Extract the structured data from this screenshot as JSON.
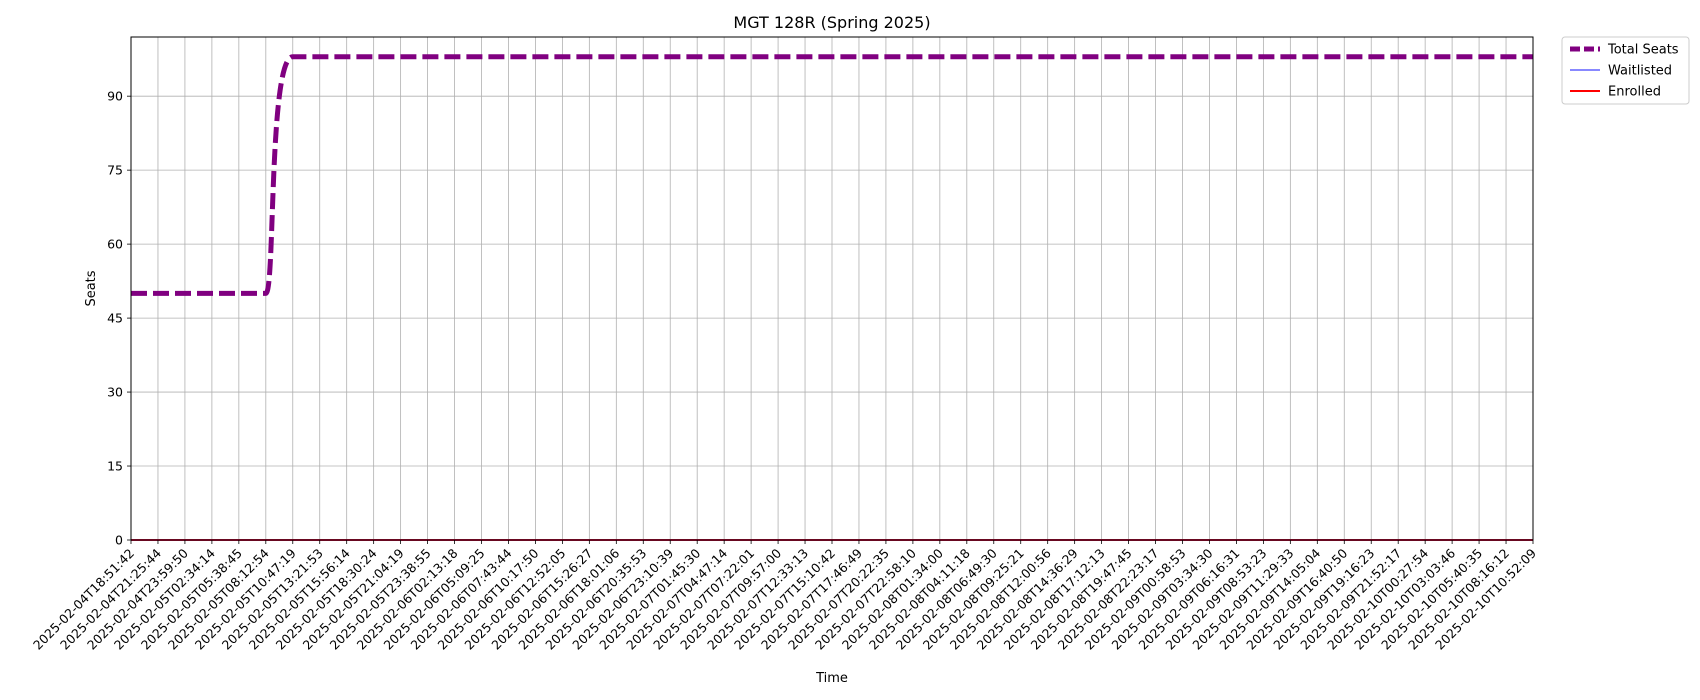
{
  "chart_data": {
    "type": "line",
    "title": "MGT 128R (Spring 2025)",
    "xlabel": "Time",
    "ylabel": "Seats",
    "ylim": [
      0,
      102
    ],
    "yticks": [
      0,
      15,
      30,
      45,
      60,
      75,
      90
    ],
    "grid": true,
    "legend_position": "outside-top-right",
    "x": [
      "2025-02-04T18:51:42",
      "2025-02-04T21:25:44",
      "2025-02-04T23:59:50",
      "2025-02-05T02:34:14",
      "2025-02-05T05:38:45",
      "2025-02-05T08:12:54",
      "2025-02-05T10:47:19",
      "2025-02-05T13:21:53",
      "2025-02-05T15:56:14",
      "2025-02-05T18:30:24",
      "2025-02-05T21:04:19",
      "2025-02-05T23:38:55",
      "2025-02-06T02:13:18",
      "2025-02-06T05:09:25",
      "2025-02-06T07:43:44",
      "2025-02-06T10:17:50",
      "2025-02-06T12:52:05",
      "2025-02-06T15:26:27",
      "2025-02-06T18:01:06",
      "2025-02-06T20:35:53",
      "2025-02-06T23:10:39",
      "2025-02-07T01:45:30",
      "2025-02-07T04:47:14",
      "2025-02-07T07:22:01",
      "2025-02-07T09:57:00",
      "2025-02-07T12:33:13",
      "2025-02-07T15:10:42",
      "2025-02-07T17:46:49",
      "2025-02-07T20:22:35",
      "2025-02-07T22:58:10",
      "2025-02-08T01:34:00",
      "2025-02-08T04:11:18",
      "2025-02-08T06:49:30",
      "2025-02-08T09:25:21",
      "2025-02-08T12:00:56",
      "2025-02-08T14:36:29",
      "2025-02-08T17:12:13",
      "2025-02-08T19:47:45",
      "2025-02-08T22:23:17",
      "2025-02-09T00:58:53",
      "2025-02-09T03:34:30",
      "2025-02-09T06:16:31",
      "2025-02-09T08:53:23",
      "2025-02-09T11:29:33",
      "2025-02-09T14:05:04",
      "2025-02-09T16:40:50",
      "2025-02-09T19:16:23",
      "2025-02-09T21:52:17",
      "2025-02-10T00:27:54",
      "2025-02-10T03:03:46",
      "2025-02-10T05:40:35",
      "2025-02-10T08:16:12",
      "2025-02-10T10:52:09"
    ],
    "series": [
      {
        "name": "Total Seats",
        "color": "#800080",
        "style": "dashed",
        "values": [
          50,
          50,
          50,
          50,
          50,
          50,
          98,
          98,
          98,
          98,
          98,
          98,
          98,
          98,
          98,
          98,
          98,
          98,
          98,
          98,
          98,
          98,
          98,
          98,
          98,
          98,
          98,
          98,
          98,
          98,
          98,
          98,
          98,
          98,
          98,
          98,
          98,
          98,
          98,
          98,
          98,
          98,
          98,
          98,
          98,
          98,
          98,
          98,
          98,
          98,
          98,
          98,
          98
        ]
      },
      {
        "name": "Waitlisted",
        "color": "#4040ff",
        "style": "solid",
        "values": [
          0,
          0,
          0,
          0,
          0,
          0,
          0,
          0,
          0,
          0,
          0,
          0,
          0,
          0,
          0,
          0,
          0,
          0,
          0,
          0,
          0,
          0,
          0,
          0,
          0,
          0,
          0,
          0,
          0,
          0,
          0,
          0,
          0,
          0,
          0,
          0,
          0,
          0,
          0,
          0,
          0,
          0,
          0,
          0,
          0,
          0,
          0,
          0,
          0,
          0,
          0,
          0,
          0
        ]
      },
      {
        "name": "Enrolled",
        "color": "#ff0000",
        "style": "solid",
        "values": [
          0,
          0,
          0,
          0,
          0,
          0,
          0,
          0,
          0,
          0,
          0,
          0,
          0,
          0,
          0,
          0,
          0,
          0,
          0,
          0,
          0,
          0,
          0,
          0,
          0,
          0,
          0,
          0,
          0,
          0,
          0,
          0,
          0,
          0,
          0,
          0,
          0,
          0,
          0,
          0,
          0,
          0,
          0,
          0,
          0,
          0,
          0,
          0,
          0,
          0,
          0,
          0,
          0
        ]
      }
    ]
  }
}
